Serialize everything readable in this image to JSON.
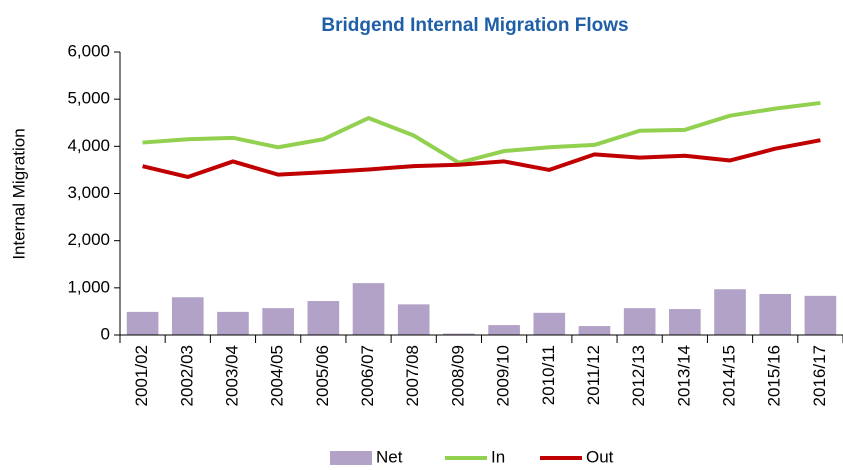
{
  "chart_data": {
    "type": "combo",
    "title": "Bridgend Internal Migration Flows",
    "y_label": "Internal Migration",
    "categories": [
      "2001/02",
      "2002/03",
      "2003/04",
      "2004/05",
      "2005/06",
      "2006/07",
      "2007/08",
      "2008/09",
      "2009/10",
      "2010/11",
      "2011/12",
      "2012/13",
      "2013/14",
      "2014/15",
      "2015/16",
      "2016/17"
    ],
    "series": [
      {
        "name": "Net",
        "type": "bar",
        "color": "#b3a2c7",
        "values": [
          490,
          800,
          490,
          570,
          720,
          1100,
          650,
          30,
          210,
          470,
          190,
          570,
          550,
          970,
          870,
          830
        ]
      },
      {
        "name": "In",
        "type": "line",
        "color": "#92d050",
        "values": [
          4080,
          4150,
          4180,
          3980,
          4150,
          4600,
          4230,
          3650,
          3900,
          3980,
          4030,
          4330,
          4350,
          4650,
          4800,
          4920
        ]
      },
      {
        "name": "Out",
        "type": "line",
        "color": "#c00000",
        "values": [
          3580,
          3350,
          3680,
          3400,
          3450,
          3510,
          3580,
          3610,
          3680,
          3500,
          3830,
          3760,
          3800,
          3700,
          3950,
          4130
        ]
      }
    ],
    "ylim": [
      0,
      6000
    ],
    "yticks": [
      {
        "value": 0,
        "label": "0"
      },
      {
        "value": 1000,
        "label": "1,000"
      },
      {
        "value": 2000,
        "label": "2,000"
      },
      {
        "value": 3000,
        "label": "3,000"
      },
      {
        "value": 4000,
        "label": "4,000"
      },
      {
        "value": 5000,
        "label": "5,000"
      },
      {
        "value": 6000,
        "label": "6,000"
      }
    ],
    "grid": false,
    "legend": "bottom"
  }
}
